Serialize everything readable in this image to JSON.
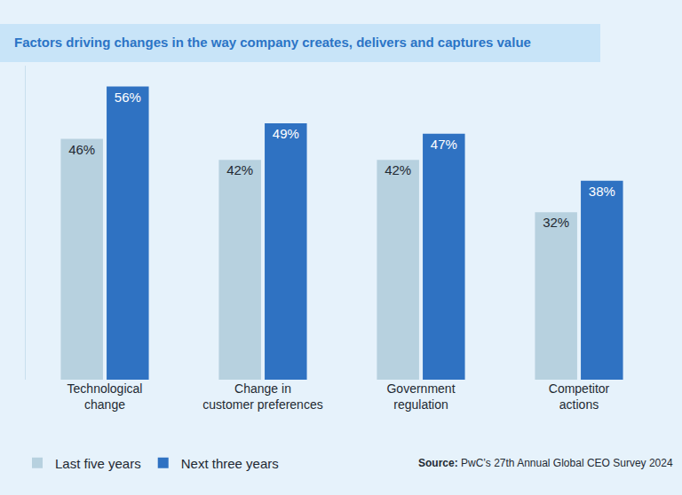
{
  "chart_data": {
    "type": "bar",
    "title": "Factors driving changes in the way company creates, delivers and captures value",
    "categories": [
      "Technological\nchange",
      "Change in\ncustomer preferences",
      "Government\nregulation",
      "Competitor\nactions"
    ],
    "series": [
      {
        "name": "Last five years",
        "color": "#b7d1df",
        "values": [
          46,
          42,
          42,
          32
        ]
      },
      {
        "name": "Next three years",
        "color": "#2f72c2",
        "values": [
          56,
          49,
          47,
          38
        ]
      }
    ],
    "value_labels": [
      [
        "46%",
        "42%",
        "42%",
        "32%"
      ],
      [
        "56%",
        "49%",
        "47%",
        "38%"
      ]
    ],
    "ylim": [
      0,
      60
    ],
    "data_labels": true,
    "tick_labels": "x",
    "grid": false,
    "legend": "bottom left",
    "source": "Source: PwC’s 27th Annual Global CEO Survey 2024"
  }
}
